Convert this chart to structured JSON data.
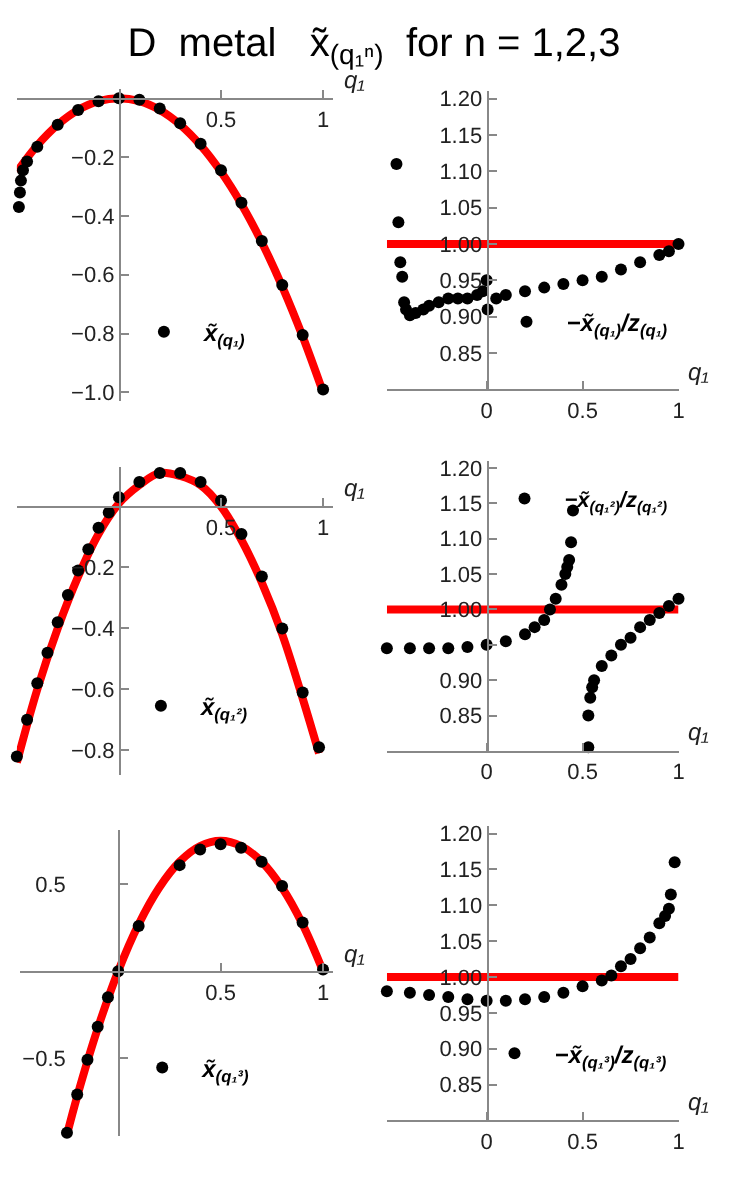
{
  "chart_data": [
    {
      "type": "scatter",
      "title": "D  metal   x̃$_{(q₁ⁿ)}$  for n = 1,2,3",
      "xlabel": "q₁",
      "xlim": [
        -0.5,
        1.05
      ],
      "ylim": [
        -1.03,
        0.03
      ],
      "xticks": [
        0.5,
        1
      ],
      "yticks": [
        {
          "value": -0.2,
          "label": "−0.2"
        },
        {
          "value": -0.4,
          "label": "−0.4"
        },
        {
          "value": -0.6,
          "label": "−0.6"
        },
        {
          "value": -0.8,
          "label": "−0.8"
        },
        {
          "value": -1.0,
          "label": "−1.0"
        }
      ],
      "legend": "bottom",
      "line_style": "solid",
      "series": [
        {
          "marker": "circle",
          "name": "x̃$_{(q₁)}$",
          "color": "#000000",
          "x": [
            -0.49,
            -0.485,
            -0.48,
            -0.47,
            -0.45,
            -0.4,
            -0.3,
            -0.2,
            -0.1,
            0,
            0.1,
            0.2,
            0.3,
            0.4,
            0.5,
            0.6,
            0.7,
            0.8,
            0.9,
            1.0
          ],
          "values": [
            -0.37,
            -0.32,
            -0.28,
            -0.245,
            -0.215,
            -0.165,
            -0.09,
            -0.04,
            -0.01,
            0.0,
            -0.005,
            -0.035,
            -0.085,
            -0.155,
            -0.245,
            -0.355,
            -0.485,
            -0.635,
            -0.805,
            -0.99
          ]
        },
        {
          "type": "line",
          "color": "#ff0000",
          "x": [
            -0.5,
            -0.4,
            -0.3,
            -0.2,
            -0.1,
            0,
            0.1,
            0.2,
            0.3,
            0.4,
            0.5,
            0.6,
            0.7,
            0.8,
            0.9,
            1.0
          ],
          "values": [
            -0.25,
            -0.16,
            -0.09,
            -0.04,
            -0.01,
            0,
            -0.01,
            -0.04,
            -0.09,
            -0.16,
            -0.25,
            -0.36,
            -0.49,
            -0.64,
            -0.81,
            -1.0
          ]
        }
      ]
    },
    {
      "type": "scatter",
      "xlabel": "q₁",
      "xlim": [
        -0.52,
        1.0
      ],
      "ylim": [
        0.8,
        1.21
      ],
      "xticks": [
        0,
        0.5,
        1
      ],
      "yticks": [
        {
          "value": 0.85,
          "label": "0.85"
        },
        {
          "value": 0.9,
          "label": "0.90"
        },
        {
          "value": 0.95,
          "label": "0.95"
        },
        {
          "value": 1.0,
          "label": "1.00"
        },
        {
          "value": 1.05,
          "label": "1.05"
        },
        {
          "value": 1.1,
          "label": "1.10"
        },
        {
          "value": 1.15,
          "label": "1.15"
        },
        {
          "value": 1.2,
          "label": "1.20"
        }
      ],
      "legend": "bottom right",
      "marker": "circle",
      "ref_lines": [
        {
          "axis": "y",
          "value": 1.0,
          "color": "#ff0000"
        }
      ],
      "series": [
        {
          "name": "−x̃$_{(q₁)}$/z$_{(q₁)}$",
          "color": "#000000",
          "x": [
            -0.47,
            -0.46,
            -0.45,
            -0.44,
            -0.43,
            -0.42,
            -0.4,
            -0.37,
            -0.33,
            -0.3,
            -0.25,
            -0.2,
            -0.15,
            -0.1,
            -0.05,
            -0.02,
            0,
            0.005,
            0.05,
            0.1,
            0.2,
            0.3,
            0.4,
            0.5,
            0.6,
            0.7,
            0.8,
            0.9,
            0.95,
            1.0
          ],
          "values": [
            1.11,
            1.03,
            0.975,
            0.955,
            0.92,
            0.91,
            0.902,
            0.905,
            0.91,
            0.915,
            0.92,
            0.925,
            0.925,
            0.925,
            0.93,
            0.935,
            0.95,
            0.91,
            0.925,
            0.93,
            0.935,
            0.94,
            0.945,
            0.95,
            0.955,
            0.965,
            0.975,
            0.985,
            0.99,
            1.0
          ]
        }
      ]
    },
    {
      "type": "scatter",
      "xlabel": "q₁",
      "xlim": [
        -0.5,
        1.05
      ],
      "ylim": [
        -0.88,
        0.13
      ],
      "xticks": [
        0.5,
        1
      ],
      "yticks": [
        {
          "value": -0.2,
          "label": "−0.2"
        },
        {
          "value": -0.4,
          "label": "−0.4"
        },
        {
          "value": -0.6,
          "label": "−0.6"
        },
        {
          "value": -0.8,
          "label": "−0.8"
        }
      ],
      "legend": "bottom",
      "line_style": "solid",
      "series": [
        {
          "marker": "circle",
          "name": "x̃$_{(q₁²)}$",
          "color": "#000000",
          "x": [
            -0.5,
            -0.45,
            -0.4,
            -0.35,
            -0.3,
            -0.25,
            -0.2,
            -0.15,
            -0.1,
            -0.05,
            0,
            0.1,
            0.2,
            0.3,
            0.4,
            0.5,
            0.6,
            0.7,
            0.8,
            0.9,
            0.98
          ],
          "values": [
            -0.82,
            -0.7,
            -0.58,
            -0.48,
            -0.38,
            -0.29,
            -0.21,
            -0.14,
            -0.07,
            -0.02,
            0.03,
            0.08,
            0.11,
            0.11,
            0.08,
            0.02,
            -0.09,
            -0.23,
            -0.4,
            -0.61,
            -0.79
          ]
        },
        {
          "type": "line",
          "color": "#ff0000",
          "x": [
            -0.5,
            -0.4,
            -0.3,
            -0.2,
            -0.1,
            0,
            0.1,
            0.2,
            0.3,
            0.4,
            0.5,
            0.6,
            0.7,
            0.8,
            0.9,
            0.98
          ],
          "values": [
            -0.84,
            -0.6,
            -0.4,
            -0.23,
            -0.09,
            0.01,
            0.07,
            0.11,
            0.1,
            0.07,
            0.0,
            -0.11,
            -0.25,
            -0.42,
            -0.63,
            -0.81
          ]
        }
      ]
    },
    {
      "type": "scatter",
      "xlabel": "q₁",
      "xlim": [
        -0.52,
        1.0
      ],
      "ylim": [
        0.8,
        1.21
      ],
      "xticks": [
        0,
        0.5,
        1
      ],
      "yticks": [
        {
          "value": 0.85,
          "label": "0.85"
        },
        {
          "value": 0.9,
          "label": "0.90"
        },
        {
          "value": 0.95,
          "label": null
        },
        {
          "value": 1.0,
          "label": "1.00"
        },
        {
          "value": 1.05,
          "label": "1.05"
        },
        {
          "value": 1.1,
          "label": "1.10"
        },
        {
          "value": 1.15,
          "label": "1.15"
        },
        {
          "value": 1.2,
          "label": "1.20"
        }
      ],
      "legend": "top right",
      "marker": "circle",
      "ref_lines": [
        {
          "axis": "y",
          "value": 1.0,
          "color": "#ff0000"
        }
      ],
      "series": [
        {
          "name": "−x̃$_{(q₁²)}$/z$_{(q₁²)}$",
          "color": "#000000",
          "x": [
            -0.52,
            -0.4,
            -0.3,
            -0.2,
            -0.1,
            0,
            0.1,
            0.2,
            0.25,
            0.3,
            0.33,
            0.36,
            0.39,
            0.41,
            0.42,
            0.43,
            0.44,
            0.45,
            0.53,
            0.53,
            0.54,
            0.55,
            0.56,
            0.6,
            0.65,
            0.7,
            0.75,
            0.8,
            0.85,
            0.9,
            0.95,
            1.0
          ],
          "values": [
            0.945,
            0.945,
            0.945,
            0.945,
            0.947,
            0.95,
            0.955,
            0.965,
            0.975,
            0.985,
            1.0,
            1.015,
            1.035,
            1.05,
            1.06,
            1.07,
            1.095,
            1.14,
            0.805,
            0.85,
            0.875,
            0.89,
            0.9,
            0.92,
            0.935,
            0.95,
            0.96,
            0.975,
            0.985,
            0.995,
            1.005,
            1.015
          ]
        }
      ]
    },
    {
      "type": "scatter",
      "xlabel": "q₁",
      "xlim": [
        -0.48,
        1.05
      ],
      "ylim": [
        -0.95,
        0.81
      ],
      "xticks": [
        0.5,
        1
      ],
      "yticks": [
        {
          "value": -0.5,
          "label": "−0.5"
        },
        0.5
      ],
      "legend": "bottom",
      "line_style": "solid",
      "series": [
        {
          "marker": "circle",
          "name": "x̃$_{(q₁³)}$",
          "color": "#000000",
          "x": [
            -0.25,
            -0.2,
            -0.15,
            -0.1,
            -0.05,
            0,
            0.1,
            0.3,
            0.4,
            0.5,
            0.6,
            0.7,
            0.8,
            0.9,
            1.0
          ],
          "values": [
            -0.93,
            -0.71,
            -0.51,
            -0.32,
            -0.15,
            0,
            0.26,
            0.61,
            0.7,
            0.73,
            0.71,
            0.63,
            0.49,
            0.28,
            0.01
          ]
        },
        {
          "type": "line",
          "color": "#ff0000",
          "x": [
            -0.25,
            -0.2,
            -0.1,
            0,
            0.1,
            0.2,
            0.3,
            0.4,
            0.5,
            0.6,
            0.7,
            0.8,
            0.9,
            1.0
          ],
          "values": [
            -0.94,
            -0.72,
            -0.33,
            0,
            0.27,
            0.48,
            0.63,
            0.72,
            0.75,
            0.72,
            0.63,
            0.48,
            0.27,
            0
          ]
        }
      ]
    },
    {
      "type": "scatter",
      "xlabel": "q₁",
      "xlim": [
        -0.52,
        1.0
      ],
      "ylim": [
        0.8,
        1.21
      ],
      "xticks": [
        0,
        0.5,
        1
      ],
      "yticks": [
        {
          "value": 0.85,
          "label": "0.85"
        },
        {
          "value": 0.9,
          "label": "0.90"
        },
        {
          "value": 0.95,
          "label": "0.95"
        },
        {
          "value": 1.0,
          "label": "1.00"
        },
        {
          "value": 1.05,
          "label": "1.05"
        },
        {
          "value": 1.1,
          "label": "1.10"
        },
        {
          "value": 1.15,
          "label": "1.15"
        },
        {
          "value": 1.2,
          "label": "1.20"
        }
      ],
      "legend": "bottom right",
      "marker": "circle",
      "ref_lines": [
        {
          "axis": "y",
          "value": 1.0,
          "color": "#ff0000"
        }
      ],
      "series": [
        {
          "name": "−x̃$_{(q₁³)}$/z$_{(q₁³)}$",
          "color": "#000000",
          "x": [
            -0.52,
            -0.4,
            -0.3,
            -0.2,
            -0.1,
            0,
            0.1,
            0.2,
            0.3,
            0.4,
            0.5,
            0.6,
            0.65,
            0.7,
            0.75,
            0.8,
            0.85,
            0.9,
            0.93,
            0.95,
            0.96,
            0.98
          ],
          "values": [
            0.98,
            0.978,
            0.975,
            0.972,
            0.969,
            0.967,
            0.967,
            0.969,
            0.972,
            0.978,
            0.987,
            0.995,
            1.002,
            1.015,
            1.025,
            1.04,
            1.055,
            1.075,
            1.085,
            1.095,
            1.115,
            1.16
          ]
        }
      ]
    }
  ]
}
